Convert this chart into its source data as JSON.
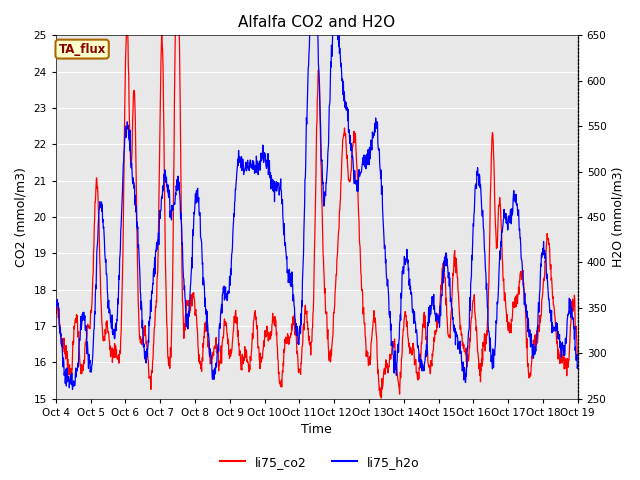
{
  "title": "Alfalfa CO2 and H2O",
  "xlabel": "Time",
  "ylabel_left": "CO2 (mmol/m3)",
  "ylabel_right": "H2O (mmol/m3)",
  "ylim_left": [
    15.0,
    25.0
  ],
  "ylim_right": [
    250,
    650
  ],
  "legend_labels": [
    "li75_co2",
    "li75_h2o"
  ],
  "legend_colors": [
    "red",
    "blue"
  ],
  "tag_label": "TA_flux",
  "tag_bg": "#ffffcc",
  "tag_border": "#aa6600",
  "fig_bg": "#ffffff",
  "plot_bg": "#e8e8e8",
  "x_tick_labels": [
    "Oct 4",
    "Oct 5",
    "Oct 6",
    "Oct 7",
    "Oct 8",
    "Oct 9",
    "Oct 10",
    "Oct 11",
    "Oct 12",
    "Oct 13",
    "Oct 14",
    "Oct 15",
    "Oct 16",
    "Oct 17",
    "Oct 18",
    "Oct 19"
  ],
  "title_fontsize": 11,
  "axis_fontsize": 9,
  "tick_fontsize": 7.5,
  "legend_fontsize": 9,
  "line_width": 0.9
}
